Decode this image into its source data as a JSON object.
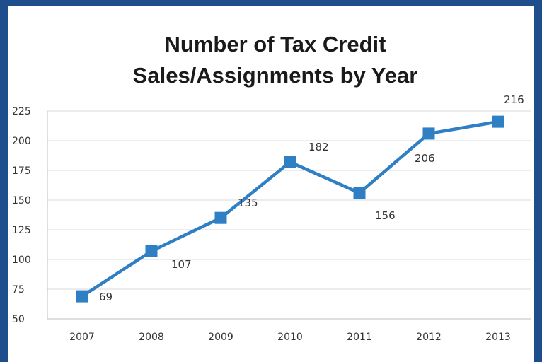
{
  "colors": {
    "frame": "#1f4e8c",
    "background": "#ffffff",
    "line": "#2e7fc4",
    "grid": "#d9d9d9",
    "text": "#333333"
  },
  "chart_data": {
    "type": "line",
    "title": "Number of Tax Credit Sales/Assignments by Year",
    "title_lines": [
      "Number of Tax Credit",
      "Sales/Assignments by Year"
    ],
    "xlabel": "",
    "ylabel": "",
    "categories": [
      "2007",
      "2008",
      "2009",
      "2010",
      "2011",
      "2012",
      "2013"
    ],
    "series": [
      {
        "values": [
          69,
          107,
          135,
          182,
          156,
          206,
          216
        ],
        "marker": "square",
        "data_labels": [
          "69",
          "107",
          "135",
          "182",
          "156",
          "206",
          "216"
        ]
      }
    ],
    "ylim": [
      50,
      225
    ],
    "yticks": [
      50,
      75,
      100,
      125,
      150,
      175,
      200,
      225
    ],
    "ytick_labels": [
      "50",
      "75",
      "100",
      "125",
      "150",
      "175",
      "200",
      "225"
    ],
    "grid": true,
    "legend": "none"
  }
}
